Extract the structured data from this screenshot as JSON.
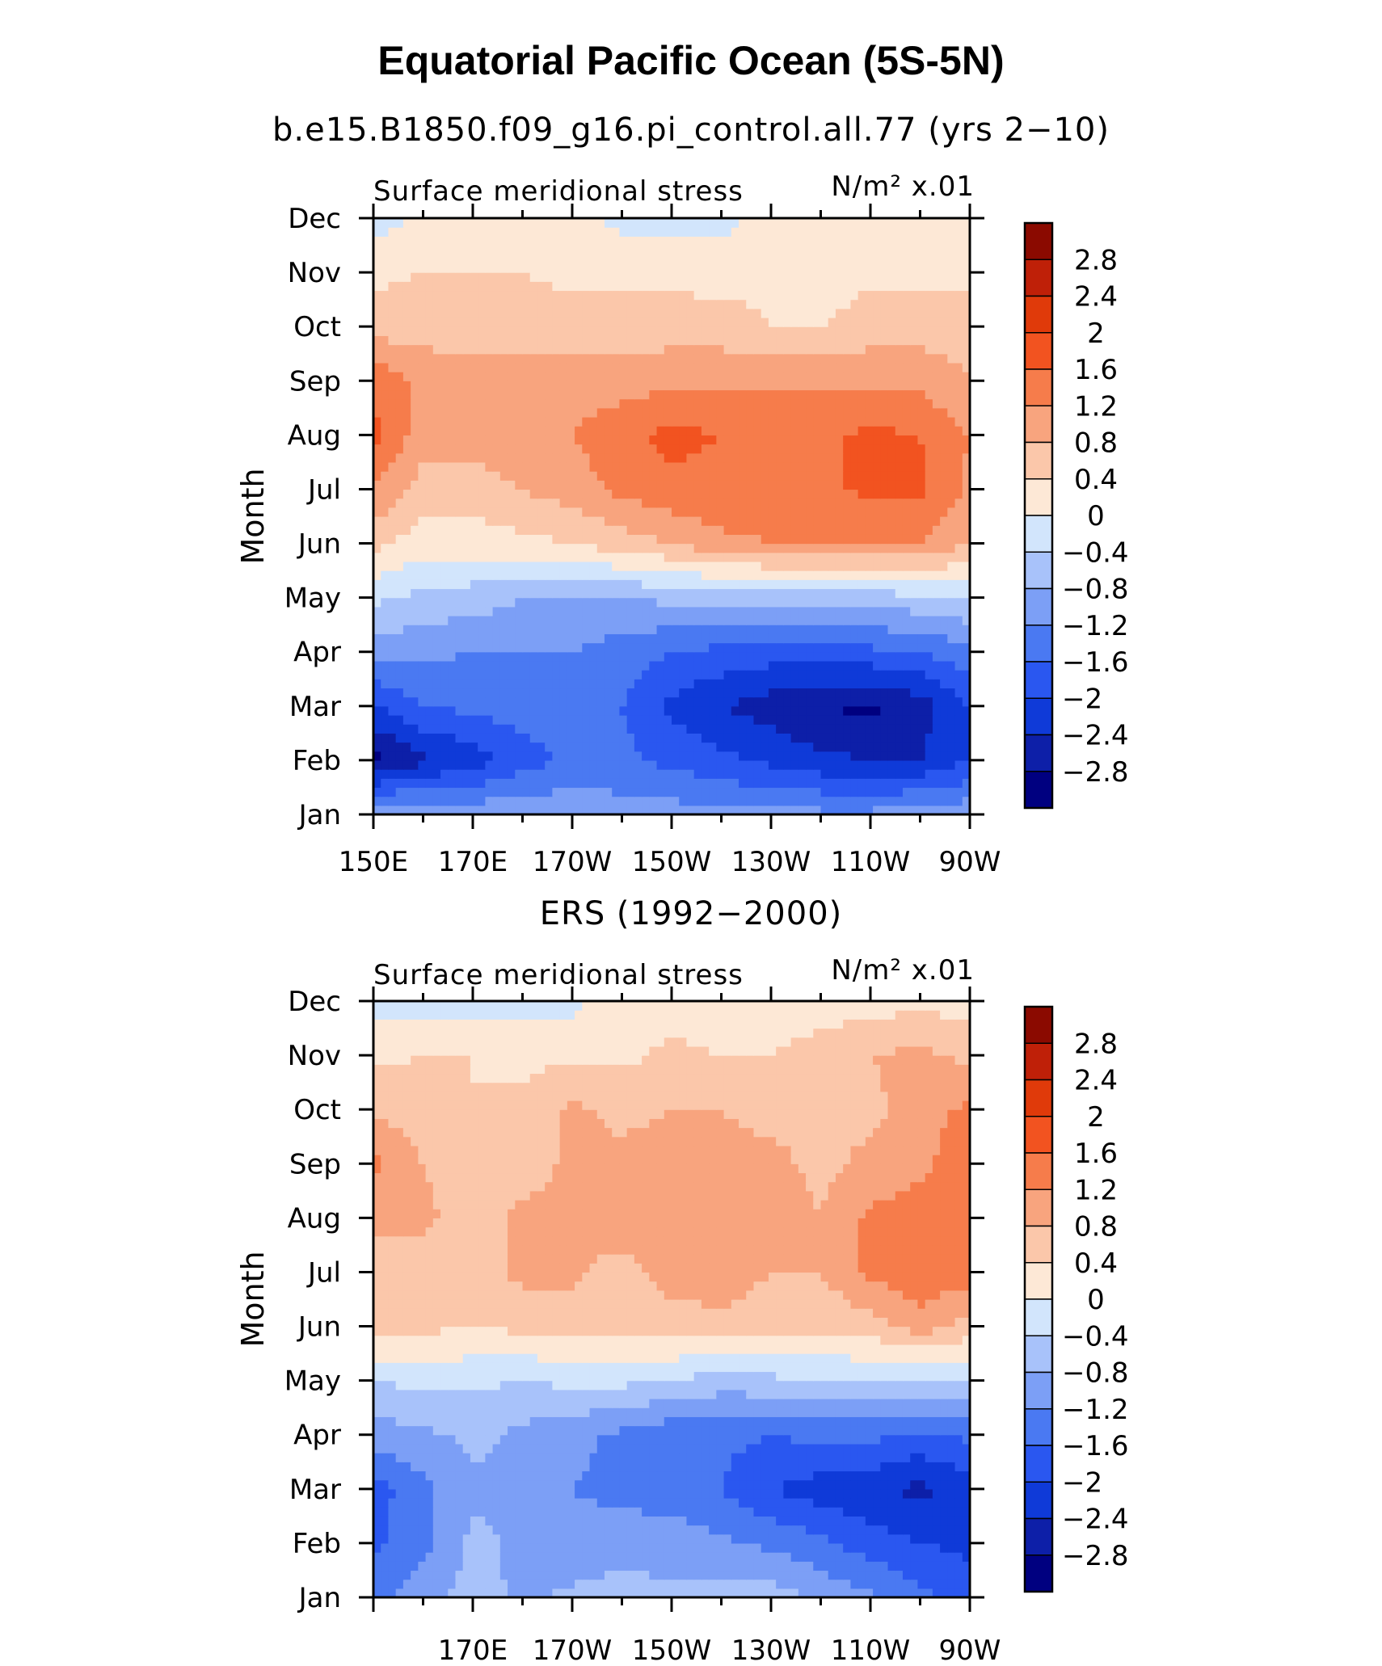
{
  "title": "Equatorial Pacific Ocean (5S-5N)",
  "colors": {
    "scale": [
      "#000080",
      "#0d1fa8",
      "#0f3ad8",
      "#2a57f0",
      "#4a79f2",
      "#7c9ff6",
      "#a8c2fa",
      "#d2e5fc",
      "#fde8d6",
      "#fbc7aa",
      "#f8a47e",
      "#f67c4b",
      "#f25320",
      "#e03a0a",
      "#bf2008",
      "#8b0a00"
    ]
  },
  "chart_data": [
    {
      "type": "heatmap",
      "subtitle": "b.e15.B1850.f09_g16.pi_control.all.77 (yrs 2−10)",
      "left_label": "Surface meridional stress",
      "right_label": "N/m² x.01",
      "ylabel": "Month",
      "x_ticks": [
        "150E",
        "170E",
        "170W",
        "150W",
        "130W",
        "110W",
        "90W"
      ],
      "y_ticks": [
        "Jan",
        "Feb",
        "Mar",
        "Apr",
        "May",
        "Jun",
        "Jul",
        "Aug",
        "Sep",
        "Oct",
        "Nov",
        "Dec"
      ],
      "colorbar_labels": [
        "2.8",
        "2.4",
        "2",
        "1.6",
        "1.2",
        "0.8",
        "0.4",
        "0",
        "−0.4",
        "−0.8",
        "−1.2",
        "−1.6",
        "−2",
        "−2.4",
        "−2.8"
      ],
      "levels": [
        -2.8,
        -2.4,
        -2.0,
        -1.6,
        -1.2,
        -0.8,
        -0.4,
        0,
        0.4,
        0.8,
        1.2,
        1.6,
        2.0,
        2.4,
        2.8
      ],
      "xlim": [
        150,
        270
      ],
      "lon": [
        150,
        160,
        170,
        180,
        190,
        200,
        210,
        220,
        230,
        240,
        250,
        260,
        270
      ],
      "values": [
        [
          -0.8,
          -0.8,
          -0.9,
          -0.9,
          -0.9,
          -1.0,
          -1.0,
          -1.1,
          -1.1,
          -1.1,
          -1.1,
          -1.0,
          -0.9
        ],
        [
          -2.9,
          -2.5,
          -2.2,
          -1.8,
          -1.5,
          -1.5,
          -1.7,
          -1.9,
          -2.1,
          -2.3,
          -2.4,
          -2.4,
          -2.0
        ],
        [
          -2.1,
          -1.6,
          -1.5,
          -1.4,
          -1.3,
          -1.6,
          -2.1,
          -2.4,
          -2.6,
          -2.8,
          -2.9,
          -2.6,
          -2.0
        ],
        [
          -1.0,
          -1.1,
          -1.2,
          -1.2,
          -1.2,
          -1.4,
          -1.6,
          -1.7,
          -1.8,
          -1.8,
          -1.7,
          -1.6,
          -1.3
        ],
        [
          -0.3,
          -0.5,
          -0.6,
          -0.8,
          -0.8,
          -0.8,
          -0.7,
          -0.7,
          -0.7,
          -0.7,
          -0.6,
          -0.5,
          -0.4
        ],
        [
          0.5,
          0.2,
          0.2,
          0.3,
          0.4,
          0.6,
          0.8,
          1.1,
          1.2,
          1.2,
          1.2,
          1.2,
          0.8
        ],
        [
          1.2,
          0.6,
          0.6,
          0.8,
          1.0,
          1.3,
          1.5,
          1.5,
          1.5,
          1.5,
          1.7,
          1.7,
          1.1
        ],
        [
          1.7,
          1.0,
          1.0,
          1.1,
          1.2,
          1.5,
          1.7,
          1.6,
          1.5,
          1.5,
          1.7,
          1.6,
          1.2
        ],
        [
          1.5,
          1.1,
          1.0,
          1.0,
          1.0,
          1.0,
          1.1,
          1.1,
          1.1,
          1.1,
          1.1,
          1.1,
          0.8
        ],
        [
          0.6,
          0.6,
          0.6,
          0.6,
          0.6,
          0.6,
          0.6,
          0.6,
          0.4,
          0.4,
          0.6,
          0.6,
          0.6
        ],
        [
          0.3,
          0.4,
          0.4,
          0.4,
          0.3,
          0.3,
          0.3,
          0.2,
          0.3,
          0.2,
          0.3,
          0.3,
          0.3
        ],
        [
          -0.2,
          0.1,
          0.2,
          0.2,
          0.1,
          -0.1,
          -0.2,
          -0.1,
          0.1,
          0.1,
          0.1,
          0.2,
          0.2
        ]
      ]
    },
    {
      "type": "heatmap",
      "subtitle": "ERS (1992−2000)",
      "left_label": "Surface meridional stress",
      "right_label": "N/m² x.01",
      "ylabel": "Month",
      "x_ticks": [
        "170E",
        "170W",
        "150W",
        "130W",
        "110W",
        "90W"
      ],
      "y_ticks": [
        "Jan",
        "Feb",
        "Mar",
        "Apr",
        "May",
        "Jun",
        "Jul",
        "Aug",
        "Sep",
        "Oct",
        "Nov",
        "Dec"
      ],
      "colorbar_labels": [
        "2.8",
        "2.4",
        "2",
        "1.6",
        "1.2",
        "0.8",
        "0.4",
        "0",
        "−0.4",
        "−0.8",
        "−1.2",
        "−1.6",
        "−2",
        "−2.4",
        "−2.8"
      ],
      "levels": [
        -2.8,
        -2.4,
        -2.0,
        -1.6,
        -1.2,
        -0.8,
        -0.4,
        0,
        0.4,
        0.8,
        1.2,
        1.6,
        2.0,
        2.4,
        2.8
      ],
      "xlim": [
        150,
        270
      ],
      "lon": [
        150,
        160,
        170,
        180,
        190,
        200,
        210,
        220,
        230,
        240,
        250,
        260,
        270
      ],
      "values": [
        [
          -1.3,
          -1.0,
          -0.6,
          -0.9,
          -0.7,
          -0.6,
          -0.7,
          -0.7,
          -0.6,
          -0.9,
          -1.1,
          -1.5,
          -1.8
        ],
        [
          -1.7,
          -1.3,
          -0.7,
          -0.9,
          -1.1,
          -1.0,
          -1.0,
          -1.1,
          -1.3,
          -1.5,
          -1.8,
          -2.0,
          -2.1
        ],
        [
          -1.8,
          -1.3,
          -0.9,
          -0.8,
          -1.2,
          -1.3,
          -1.4,
          -1.6,
          -2.0,
          -2.2,
          -2.3,
          -2.5,
          -2.2
        ],
        [
          -1.0,
          -0.9,
          -0.7,
          -0.9,
          -1.1,
          -1.3,
          -1.5,
          -1.5,
          -1.6,
          -1.5,
          -1.5,
          -1.7,
          -1.5
        ],
        [
          -0.4,
          -0.3,
          -0.3,
          -0.4,
          -0.3,
          -0.3,
          -0.4,
          -0.6,
          -0.5,
          -0.4,
          -0.4,
          -0.5,
          -0.3
        ],
        [
          0.6,
          0.5,
          0.4,
          0.5,
          0.6,
          0.5,
          0.6,
          0.7,
          0.6,
          0.5,
          0.6,
          1.0,
          0.6
        ],
        [
          0.8,
          0.6,
          0.6,
          0.9,
          0.9,
          0.6,
          1.0,
          1.0,
          0.8,
          0.8,
          1.3,
          1.5,
          1.4
        ],
        [
          0.8,
          0.9,
          0.6,
          0.9,
          0.9,
          1.1,
          1.2,
          1.1,
          1.0,
          0.8,
          1.3,
          1.4,
          1.5
        ],
        [
          1.3,
          0.8,
          0.5,
          0.6,
          0.9,
          0.9,
          1.0,
          0.9,
          0.9,
          0.7,
          0.9,
          1.1,
          1.5
        ],
        [
          0.7,
          0.6,
          0.4,
          0.5,
          0.9,
          0.7,
          0.8,
          0.8,
          0.7,
          0.7,
          0.7,
          1.0,
          1.3
        ],
        [
          0.3,
          0.4,
          0.4,
          0.3,
          0.3,
          0.3,
          0.5,
          0.4,
          0.4,
          0.6,
          0.8,
          0.9,
          0.7
        ],
        [
          -0.1,
          -0.2,
          -0.2,
          -0.1,
          -0.1,
          0.2,
          0.2,
          0.2,
          0.1,
          0.2,
          0.2,
          0.3,
          0.2
        ]
      ]
    }
  ]
}
